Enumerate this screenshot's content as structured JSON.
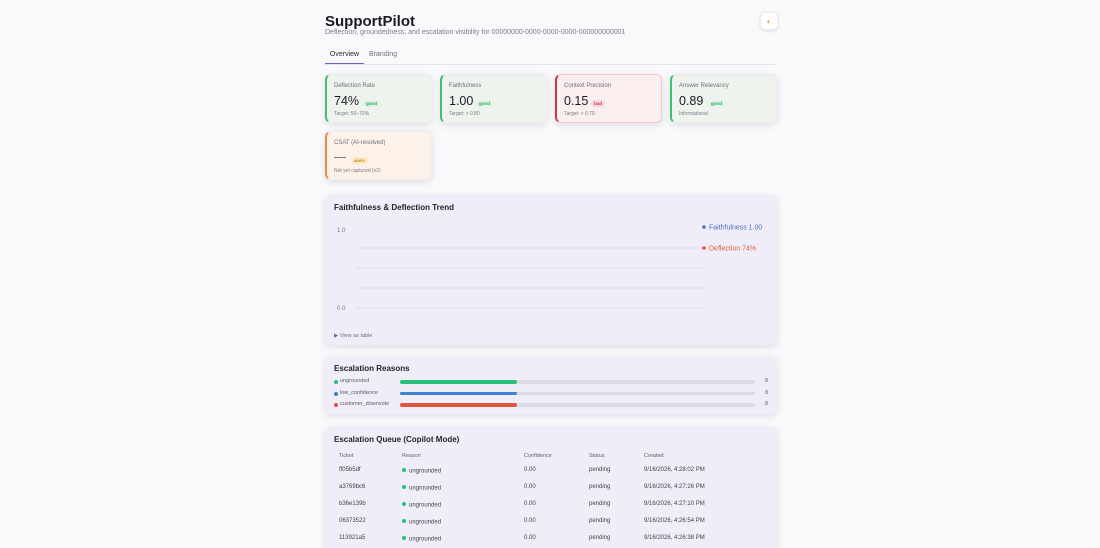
{
  "header": {
    "title": "SupportPilot",
    "subtitle": "Deflection, groundedness, and escalation visibility for 00000000-0000-0000-0000-000000000001",
    "theme_icon": "sun-moon-icon"
  },
  "tabs": [
    {
      "label": "Overview",
      "active": true
    },
    {
      "label": "Branding",
      "active": false
    }
  ],
  "metrics": [
    {
      "label": "Deflection Rate",
      "value": "74%",
      "status": "good",
      "footnote": "Target: 50–70%"
    },
    {
      "label": "Faithfulness",
      "value": "1.00",
      "status": "good",
      "footnote": "Target: > 0.80"
    },
    {
      "label": "Context Precision",
      "value": "0.15",
      "status": "bad",
      "footnote": "Target: > 0.70"
    },
    {
      "label": "Answer Relevancy",
      "value": "0.89",
      "status": "good",
      "footnote": "Informational"
    },
    {
      "label": "CSAT (AI-resolved)",
      "value": "",
      "status": "warn",
      "footnote": "Not yet captured (v2)"
    }
  ],
  "colors": {
    "good": "#3fbf6f",
    "bad": "#c8374b",
    "warn": "#e58b4a",
    "faithfulness": "#4a6fc0",
    "deflection": "#e05a3c",
    "ungrounded": "#28c07a",
    "low_confidence": "#3d7fd0",
    "customer_downvote": "#e2533b"
  },
  "trend": {
    "title": "Faithfulness & Deflection Trend",
    "view_table": "▶ View as table"
  },
  "chart_data": {
    "type": "line",
    "title": "Faithfulness & Deflection Trend",
    "ylim": [
      0.0,
      1.0
    ],
    "ytick_labels": [
      "1.0",
      "0.0"
    ],
    "grid": true,
    "legend_position": "right",
    "series": [
      {
        "name": "Faithfulness",
        "label": "Faithfulness 1.00",
        "values": [
          1.0
        ],
        "color": "#4a6fc0"
      },
      {
        "name": "Deflection",
        "label": "Deflection 74%",
        "values": [
          0.74
        ],
        "color": "#e05a3c"
      }
    ]
  },
  "escalation_reasons": {
    "title": "Escalation Reasons",
    "items": [
      {
        "label": "ungrounded",
        "count": "8",
        "share": 0.33,
        "color": "#28c07a"
      },
      {
        "label": "low_confidence",
        "count": "8",
        "share": 0.33,
        "color": "#3d7fd0"
      },
      {
        "label": "customer_downvote",
        "count": "8",
        "share": 0.33,
        "color": "#e2533b"
      }
    ]
  },
  "queue": {
    "title": "Escalation Queue (Copilot Mode)",
    "columns": [
      "Ticket",
      "Reason",
      "Confidence",
      "Status",
      "Created"
    ],
    "rows": [
      {
        "ticket": "ff05b5df",
        "reason": "ungrounded",
        "confidence": "0.00",
        "status": "pending",
        "created": "9/16/2026, 4:28:02 PM"
      },
      {
        "ticket": "a3769bc6",
        "reason": "ungrounded",
        "confidence": "0.00",
        "status": "pending",
        "created": "9/16/2026, 4:27:26 PM"
      },
      {
        "ticket": "b36e139b",
        "reason": "ungrounded",
        "confidence": "0.00",
        "status": "pending",
        "created": "9/16/2026, 4:27:10 PM"
      },
      {
        "ticket": "06373522",
        "reason": "ungrounded",
        "confidence": "0.00",
        "status": "pending",
        "created": "9/16/2026, 4:26:54 PM"
      },
      {
        "ticket": "113921a5",
        "reason": "ungrounded",
        "confidence": "0.00",
        "status": "pending",
        "created": "9/16/2026, 4:26:38 PM"
      }
    ]
  }
}
